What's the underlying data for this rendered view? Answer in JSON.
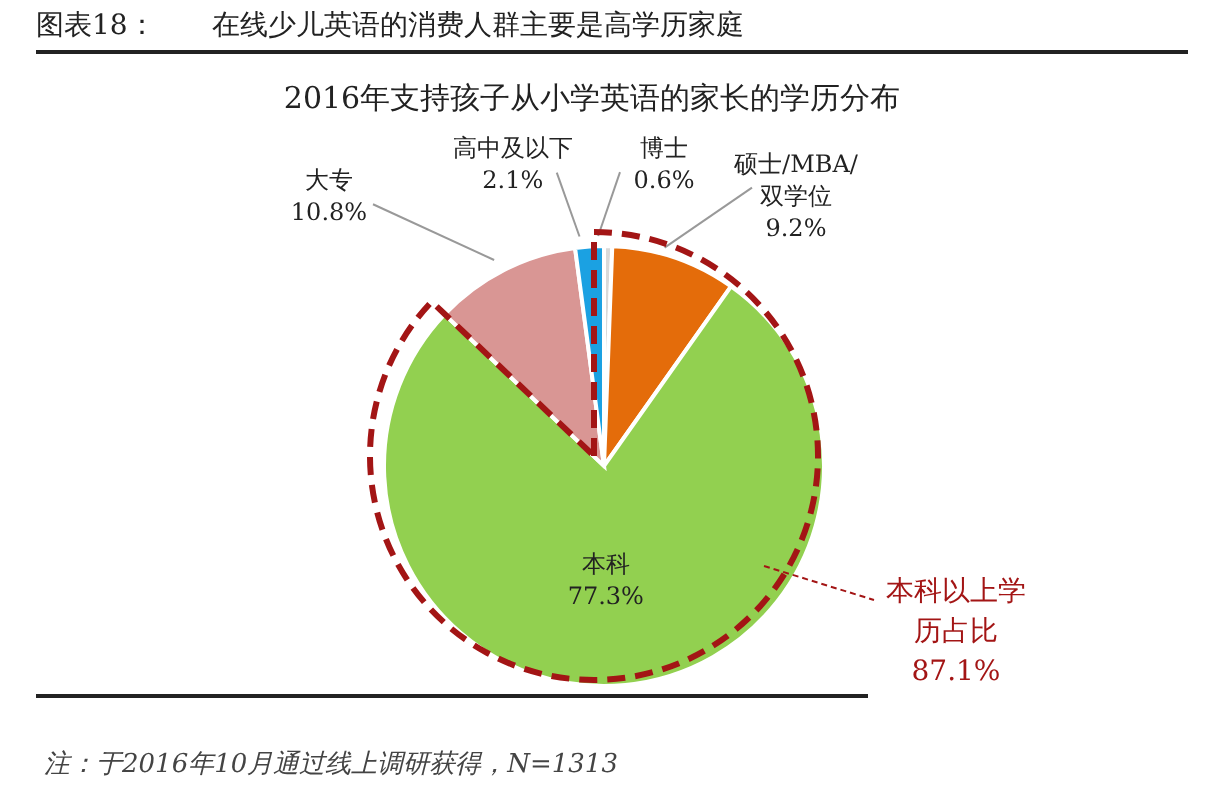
{
  "chart_data": {
    "type": "pie",
    "title": "图表18：　　在线少儿英语的消费人群主要是高学历家庭",
    "subtitle": "2016年支持孩子从小学英语的家长的学历分布",
    "categories": [
      "博士",
      "硕士/MBA/双学位",
      "本科",
      "大专",
      "高中及以下"
    ],
    "values": [
      0.6,
      9.2,
      77.3,
      10.8,
      2.1
    ],
    "value_labels": [
      "0.6%",
      "9.2%",
      "77.3%",
      "10.8%",
      "2.1%"
    ],
    "colors": [
      "#d9d9d9",
      "#e46c0a",
      "#92d050",
      "#d99694",
      "#1ba1e2"
    ],
    "annotations": [
      "本科以上学历占比87.1%",
      "注：于2016年10月通过线上调研获得，N=1313"
    ]
  }
}
